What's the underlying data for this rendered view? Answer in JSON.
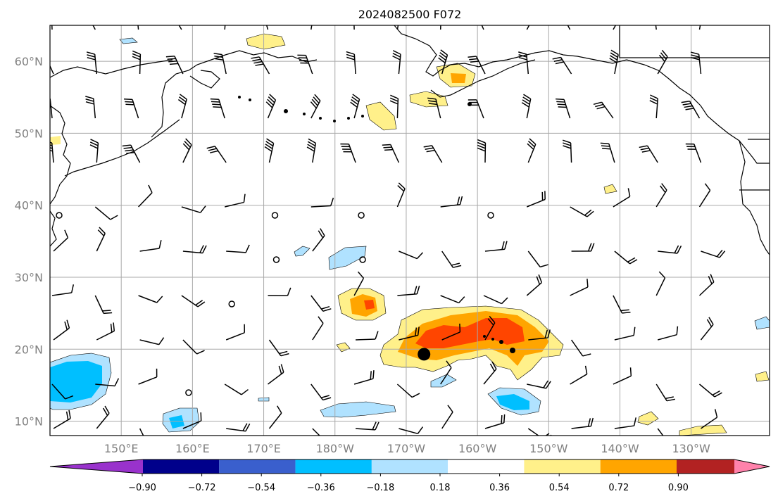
{
  "title": "2024082500 F072",
  "map": {
    "lat_labels": [
      "10°N",
      "20°N",
      "30°N",
      "40°N",
      "50°N",
      "60°N"
    ],
    "lat_values": [
      10,
      20,
      30,
      40,
      50,
      60
    ],
    "lon_labels": [
      "150°E",
      "160°E",
      "170°E",
      "180°W",
      "170°W",
      "160°W",
      "150°W",
      "140°W",
      "130°W"
    ],
    "lon_values": [
      150,
      160,
      170,
      180,
      190,
      200,
      210,
      220,
      230
    ],
    "lon_range": [
      140,
      241
    ],
    "lat_range": [
      8,
      65
    ],
    "grid": true,
    "land_color": "#ffffff",
    "coast_color": "#000000",
    "storm_marker": {
      "lon": 192.5,
      "lat": 19.3
    }
  },
  "colorbar": {
    "colors": [
      "#9932cc",
      "#00008b",
      "#3a5fcd",
      "#00bfff",
      "#b0e2ff",
      "#ffffff",
      "#fff08a",
      "#ffa500",
      "#ff4500",
      "#b22222",
      "#ff82ab"
    ],
    "tick_labels": [
      "−0.90",
      "−0.72",
      "−0.54",
      "−0.36",
      "−0.18",
      "0.18",
      "0.36",
      "0.54",
      "0.72",
      "0.90"
    ]
  }
}
